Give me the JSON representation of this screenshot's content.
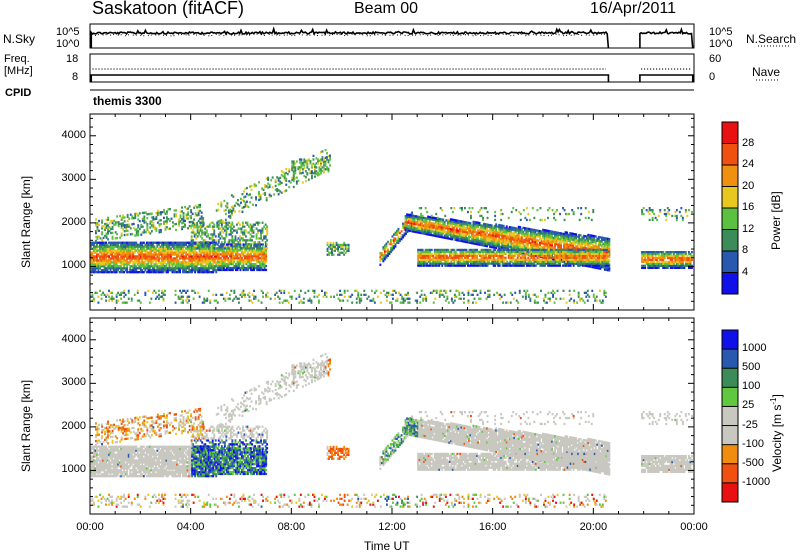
{
  "header": {
    "station": "Saskatoon (fitACF)",
    "beam": "Beam 00",
    "date": "16/Apr/2011"
  },
  "side_labels": {
    "nsky": "N.Sky",
    "freq": "Freq.",
    "freq_unit": "[MHz]",
    "cpid": "CPID",
    "nsearch": "N.Search",
    "nave": "Nave",
    "cpid_value": "themis 3300"
  },
  "noise_panel": {
    "left_ticks": [
      "10^5",
      "10^0"
    ],
    "right_ticks": [
      "10^5",
      "10^0"
    ]
  },
  "freq_panel": {
    "left_ticks": [
      "18",
      "8"
    ],
    "right_ticks": [
      "60",
      "0"
    ]
  },
  "colors": {
    "scale": [
      "#1010e8",
      "#2858b0",
      "#3c8c5a",
      "#5cc040",
      "#e8c820",
      "#f09010",
      "#f05010",
      "#e81010"
    ],
    "velocity_scale": [
      "#e81010",
      "#f05010",
      "#f08c10",
      "#c8c8c0",
      "#c8c8c0",
      "#60c840",
      "#3c8c5a",
      "#2858b0",
      "#1010e8"
    ],
    "gray": "#c8c8c0"
  },
  "chart_data": [
    {
      "type": "heatmap",
      "name": "power",
      "xlabel": "Time UT",
      "ylabel": "Slant Range [km]",
      "xlim": [
        "00:00",
        "24:00"
      ],
      "ylim": [
        0,
        4500
      ],
      "y_ticks": [
        "1000",
        "2000",
        "3000",
        "4000"
      ],
      "x_ticks": [
        "00:00",
        "04:00",
        "08:00",
        "12:00",
        "16:00",
        "20:00",
        "00:00"
      ],
      "colorbar": {
        "label": "Power [dB]",
        "ticks": [
          "4",
          "8",
          "12",
          "16",
          "20",
          "24",
          "28"
        ]
      }
    },
    {
      "type": "heatmap",
      "name": "velocity",
      "xlabel": "Time UT",
      "ylabel": "Slant Range [km]",
      "xlim": [
        "00:00",
        "24:00"
      ],
      "ylim": [
        0,
        4500
      ],
      "y_ticks": [
        "1000",
        "2000",
        "3000",
        "4000"
      ],
      "x_ticks": [
        "00:00",
        "04:00",
        "08:00",
        "12:00",
        "16:00",
        "20:00",
        "00:00"
      ],
      "colorbar": {
        "label": "Velocity [m s-1]",
        "label_main": "Velocity [m s",
        "label_sup": "-1",
        "label_end": "]",
        "ticks": [
          "1000",
          "500",
          "100",
          "25",
          "-25",
          "-100",
          "-500",
          "-1000"
        ]
      }
    }
  ]
}
